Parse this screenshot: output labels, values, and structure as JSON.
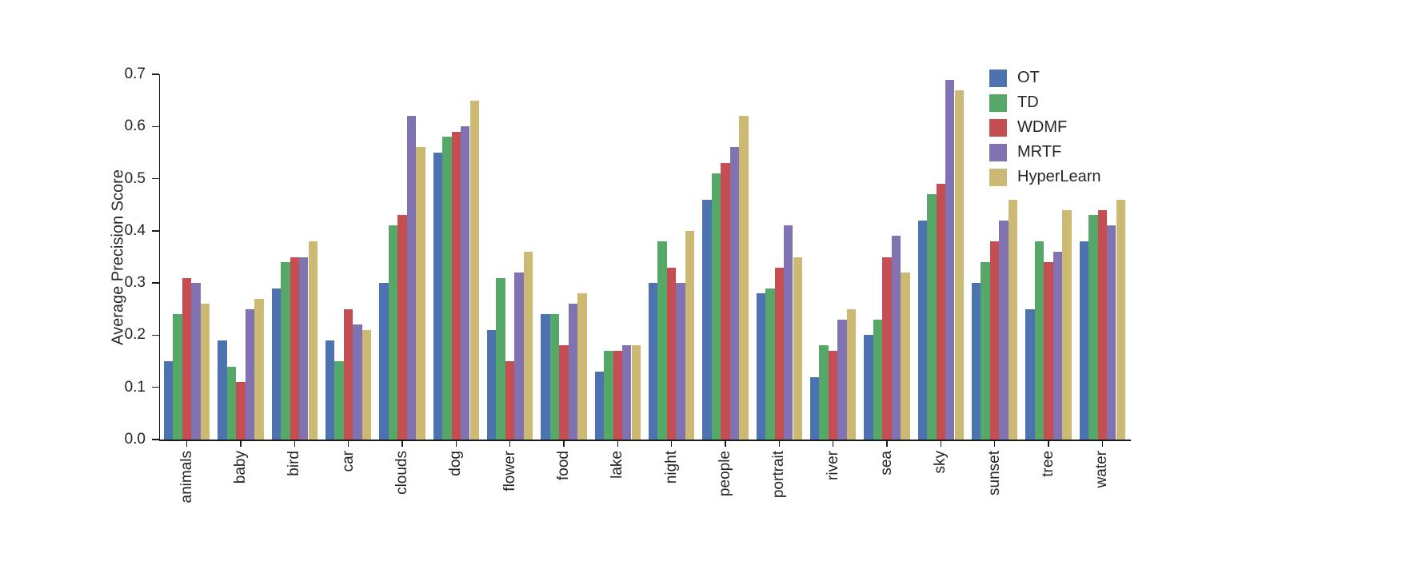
{
  "chart_data": {
    "type": "bar",
    "title": "",
    "xlabel": "",
    "ylabel": "Average Precision Score",
    "ylim": [
      0.0,
      0.7
    ],
    "yticks": [
      0.0,
      0.1,
      0.2,
      0.3,
      0.4,
      0.5,
      0.6,
      0.7
    ],
    "grid": false,
    "legend_position": "upper right",
    "categories": [
      "animals",
      "baby",
      "bird",
      "car",
      "clouds",
      "dog",
      "flower",
      "food",
      "lake",
      "night",
      "people",
      "portrait",
      "river",
      "sea",
      "sky",
      "sunset",
      "tree",
      "water"
    ],
    "series": [
      {
        "name": "OT",
        "color": "#4C72B0",
        "values": [
          0.15,
          0.19,
          0.29,
          0.19,
          0.3,
          0.55,
          0.21,
          0.24,
          0.13,
          0.3,
          0.46,
          0.28,
          0.12,
          0.2,
          0.42,
          0.3,
          0.25,
          0.38
        ]
      },
      {
        "name": "TD",
        "color": "#55A868",
        "values": [
          0.24,
          0.14,
          0.34,
          0.15,
          0.41,
          0.58,
          0.31,
          0.24,
          0.17,
          0.38,
          0.51,
          0.29,
          0.18,
          0.23,
          0.47,
          0.34,
          0.38,
          0.43
        ]
      },
      {
        "name": "WDMF",
        "color": "#C44E52",
        "values": [
          0.31,
          0.11,
          0.35,
          0.25,
          0.43,
          0.59,
          0.15,
          0.18,
          0.17,
          0.33,
          0.53,
          0.33,
          0.17,
          0.35,
          0.49,
          0.38,
          0.34,
          0.44
        ]
      },
      {
        "name": "MRTF",
        "color": "#8172B2",
        "values": [
          0.3,
          0.25,
          0.35,
          0.22,
          0.62,
          0.6,
          0.32,
          0.26,
          0.18,
          0.3,
          0.56,
          0.41,
          0.23,
          0.39,
          0.69,
          0.42,
          0.36,
          0.41
        ]
      },
      {
        "name": "HyperLearn",
        "color": "#CCB974",
        "values": [
          0.26,
          0.27,
          0.38,
          0.21,
          0.56,
          0.65,
          0.36,
          0.28,
          0.18,
          0.4,
          0.62,
          0.35,
          0.25,
          0.32,
          0.67,
          0.46,
          0.44,
          0.46
        ]
      }
    ]
  }
}
